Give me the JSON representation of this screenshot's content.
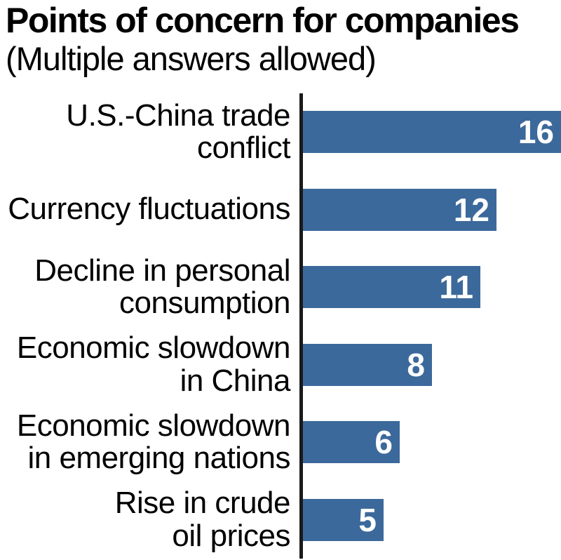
{
  "title": "Points of concern for companies",
  "subtitle": "(Multiple answers allowed)",
  "colors": {
    "bar": "#3c699b",
    "axis": "#1a1a1a",
    "value_text": "#ffffff",
    "text": "#000000",
    "background": "#ffffff"
  },
  "chart_data": {
    "type": "bar",
    "orientation": "horizontal",
    "title": "Points of concern for companies",
    "subtitle": "(Multiple answers allowed)",
    "categories": [
      "U.S.-China trade conflict",
      "Currency fluctuations",
      "Decline in personal consumption",
      "Economic slowdown in China",
      "Economic slowdown in emerging nations",
      "Rise in crude oil prices"
    ],
    "category_lines": [
      [
        "U.S.-China trade",
        "conflict"
      ],
      [
        "Currency fluctuations"
      ],
      [
        "Decline in personal",
        "consumption"
      ],
      [
        "Economic slowdown",
        "in China"
      ],
      [
        "Economic slowdown",
        "in emerging nations"
      ],
      [
        "Rise in crude",
        "oil prices"
      ]
    ],
    "values": [
      16,
      12,
      11,
      8,
      6,
      5
    ],
    "xlim": [
      0,
      16
    ],
    "value_labels_inside_bars": true,
    "grid": false,
    "legend": false,
    "xlabel": "",
    "ylabel": ""
  }
}
